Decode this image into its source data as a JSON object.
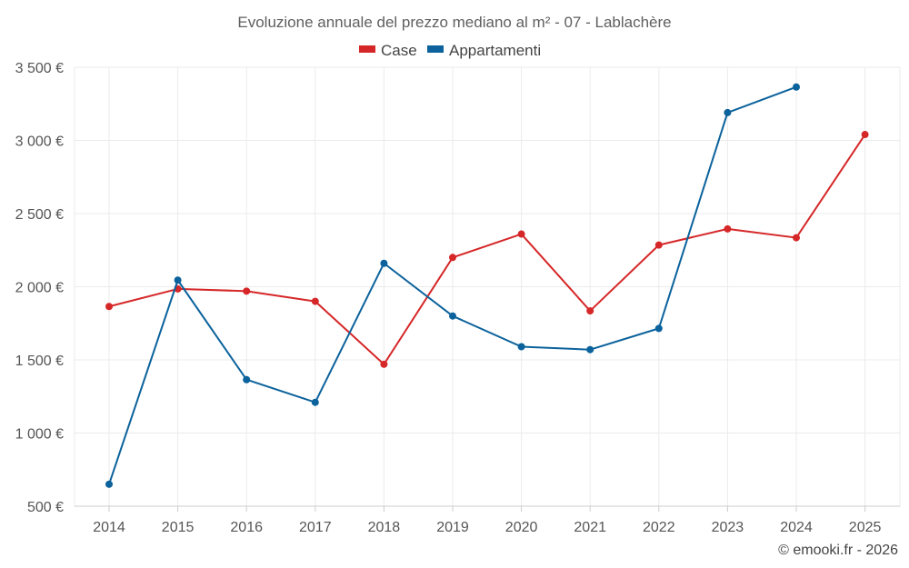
{
  "chart_data": {
    "type": "line",
    "title": "Evoluzione annuale del prezzo mediano al m² - 07 - Lablachère",
    "categories": [
      "2014",
      "2015",
      "2016",
      "2017",
      "2018",
      "2019",
      "2020",
      "2021",
      "2022",
      "2023",
      "2024",
      "2025"
    ],
    "series": [
      {
        "name": "Case",
        "color": "#d62728",
        "values": [
          1865,
          1985,
          1970,
          1900,
          1470,
          2200,
          2360,
          1835,
          2285,
          2395,
          2335,
          3040
        ]
      },
      {
        "name": "Appartamenti",
        "color": "#0b629c",
        "values": [
          650,
          2045,
          1365,
          1210,
          2160,
          1800,
          1590,
          1570,
          1715,
          3190,
          3365,
          null
        ]
      }
    ],
    "y_ticks": [
      "500 €",
      "1 000 €",
      "1 500 €",
      "2 000 €",
      "2 500 €",
      "3 000 €",
      "3 500 €"
    ],
    "y_tick_values": [
      500,
      1000,
      1500,
      2000,
      2500,
      3000,
      3500
    ],
    "ylim": [
      500,
      3500
    ],
    "xlabel": "",
    "ylabel": "",
    "grid": true,
    "legend_position": "top-center"
  },
  "credit": "© emooki.fr - 2026"
}
